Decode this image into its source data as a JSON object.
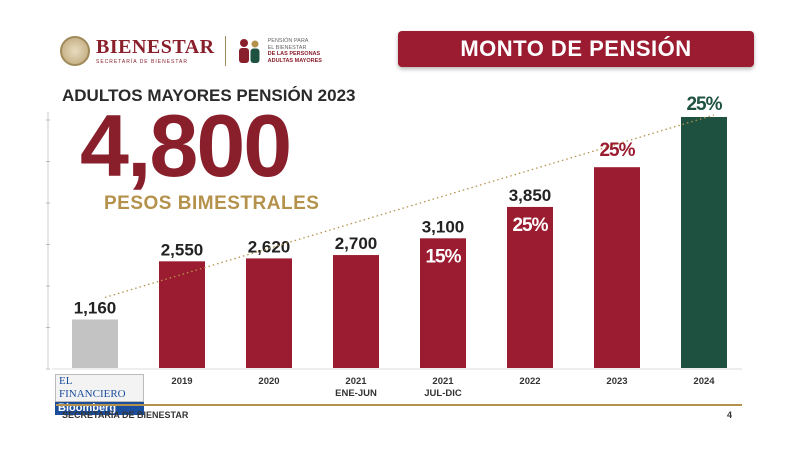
{
  "header": {
    "brand": "BIENESTAR",
    "brand_sub": "SECRETARÍA DE BIENESTAR",
    "program_lines": [
      "PENSIÓN PARA",
      "EL BIENESTAR",
      "DE LAS PERSONAS",
      "ADULTAS MAYORES"
    ],
    "banner_title": "MONTO DE PENSIÓN"
  },
  "headline": {
    "title": "ADULTOS MAYORES PENSIÓN 2023",
    "amount": "4,800",
    "unit": "PESOS BIMESTRALES"
  },
  "watermark": {
    "top": "EL FINANCIERO",
    "bottom": "Bloomberg"
  },
  "footer": {
    "left": "SECRETARÍA DE BIENESTAR",
    "page": "4"
  },
  "colors": {
    "bar_red": "#9b1b30",
    "bar_gray": "#b9b9b9",
    "bar_green": "#1f5140",
    "gold": "#b5924c",
    "pct_red": "#9b1b30",
    "pct_green": "#1f5140"
  },
  "chart_data": {
    "type": "bar",
    "title": "",
    "xlabel": "",
    "ylabel": "",
    "ylim": [
      0,
      6000
    ],
    "grid": false,
    "trendline": true,
    "bars": [
      {
        "label": "",
        "sublabel": "",
        "value": 1160,
        "value_label": "1,160",
        "pct": "",
        "color": "gray"
      },
      {
        "label": "2019",
        "sublabel": "",
        "value": 2550,
        "value_label": "2,550",
        "pct": "",
        "color": "red"
      },
      {
        "label": "2020",
        "sublabel": "",
        "value": 2620,
        "value_label": "2,620",
        "pct": "",
        "color": "red"
      },
      {
        "label": "2021",
        "sublabel": "ENE-JUN",
        "value": 2700,
        "value_label": "2,700",
        "pct": "",
        "color": "red"
      },
      {
        "label": "2021",
        "sublabel": "JUL-DIC",
        "value": 3100,
        "value_label": "3,100",
        "pct": "15%",
        "color": "red"
      },
      {
        "label": "2022",
        "sublabel": "",
        "value": 3850,
        "value_label": "3,850",
        "pct": "25%",
        "color": "red"
      },
      {
        "label": "2023",
        "sublabel": "",
        "value": 4800,
        "value_label": "",
        "pct": "25%",
        "color": "red"
      },
      {
        "label": "2024",
        "sublabel": "",
        "value": 6000,
        "value_label": "",
        "pct": "25%",
        "color": "green"
      }
    ]
  }
}
